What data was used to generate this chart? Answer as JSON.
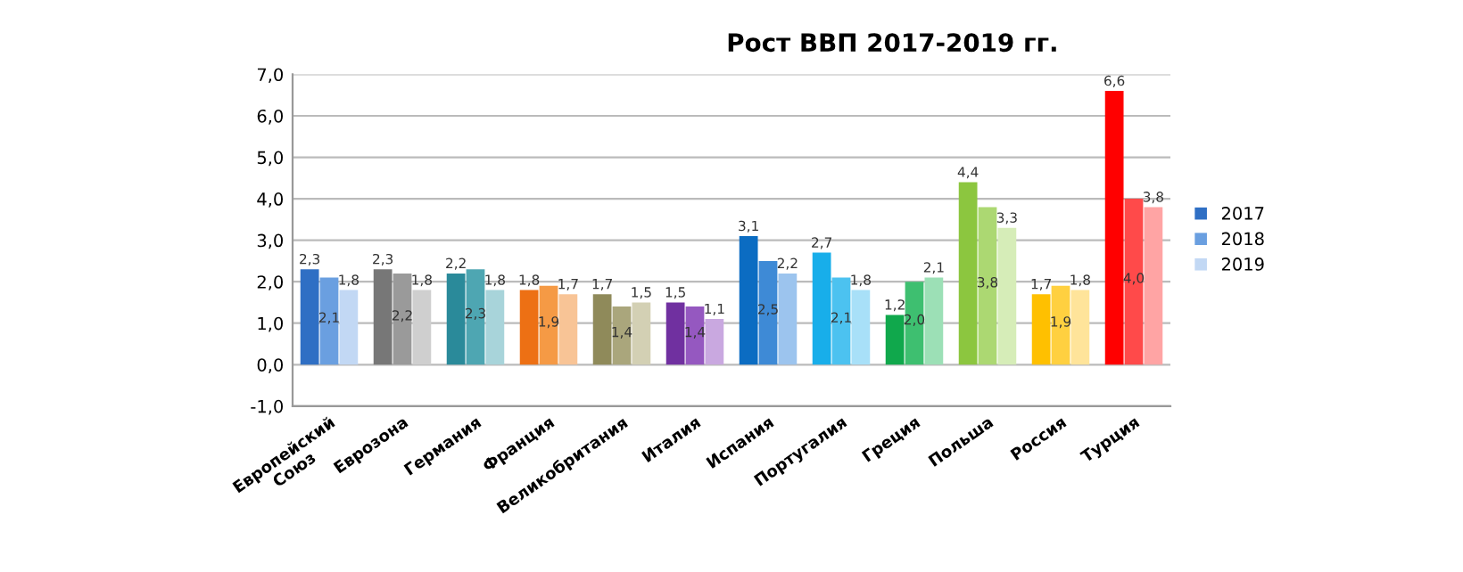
{
  "chart_data": {
    "type": "bar",
    "title": "Рост ВВП 2017-2019 гг.",
    "categories": [
      "Европейский\nСоюз",
      "Еврозона",
      "Германия",
      "Франция",
      "Великобритания",
      "Италия",
      "Испания",
      "Португалия",
      "Греция",
      "Польша",
      "Россия",
      "Турция"
    ],
    "series": [
      {
        "name": "2017",
        "color": "#2f6fc4",
        "values": [
          2.3,
          2.3,
          2.2,
          1.8,
          1.7,
          1.5,
          3.1,
          2.7,
          1.2,
          4.4,
          1.7,
          6.6
        ],
        "value_labels": [
          "2,3",
          "2,3",
          "2,2",
          "1,8",
          "1,7",
          "1,5",
          "3,1",
          "2,7",
          "1,2",
          "4,4",
          "1,7",
          "6,6"
        ],
        "colors": [
          "#2f6fc4",
          "#777777",
          "#2a8a9a",
          "#ed7014",
          "#8f8a5a",
          "#7030a0",
          "#0b6cc2",
          "#18aeea",
          "#10a84c",
          "#8cc63f",
          "#ffc000",
          "#ff0000"
        ]
      },
      {
        "name": "2018",
        "color": "#6a9fe0",
        "values": [
          2.1,
          2.2,
          2.3,
          1.9,
          1.4,
          1.4,
          2.5,
          2.1,
          2.0,
          3.8,
          1.9,
          4.0
        ],
        "value_labels": [
          "2,1",
          "2,2",
          "2,3",
          "1,9",
          "1,4",
          "1,4",
          "2,5",
          "2,1",
          "2,0",
          "3,8",
          "1,9",
          "4,0"
        ],
        "colors": [
          "#6a9fe0",
          "#9a9a9a",
          "#4ea6b2",
          "#f59a45",
          "#aaa67c",
          "#9558c0",
          "#3e8ad6",
          "#4cc2f0",
          "#3ebf70",
          "#acd872",
          "#ffd040",
          "#ff4a4a"
        ]
      },
      {
        "name": "2019",
        "color": "#c2d8f4",
        "values": [
          1.8,
          1.8,
          1.8,
          1.7,
          1.5,
          1.1,
          2.2,
          1.8,
          2.1,
          3.3,
          1.8,
          3.8
        ],
        "value_labels": [
          "1,8",
          "1,8",
          "1,8",
          "1,7",
          "1,5",
          "1,1",
          "2,2",
          "1,8",
          "2,1",
          "3,3",
          "1,8",
          "3,8"
        ],
        "colors": [
          "#c2d8f4",
          "#cfcfcf",
          "#a8d4da",
          "#f8c496",
          "#d3d0b4",
          "#c9a8e0",
          "#9cc4ee",
          "#a8e0f8",
          "#9ce0b6",
          "#d6edb8",
          "#ffe49a",
          "#ffa4a4"
        ]
      }
    ],
    "ylim": [
      -1,
      7
    ],
    "yticks": [
      {
        "value": -1,
        "label": "-1,0"
      },
      {
        "value": 0,
        "label": "0,0"
      },
      {
        "value": 1,
        "label": "1,0"
      },
      {
        "value": 2,
        "label": "2,0"
      },
      {
        "value": 3,
        "label": "3,0"
      },
      {
        "value": 4,
        "label": "4,0"
      },
      {
        "value": 5,
        "label": "5,0"
      },
      {
        "value": 6,
        "label": "6,0"
      },
      {
        "value": 7,
        "label": "7,0"
      }
    ],
    "grid": "y",
    "legend": "right"
  }
}
